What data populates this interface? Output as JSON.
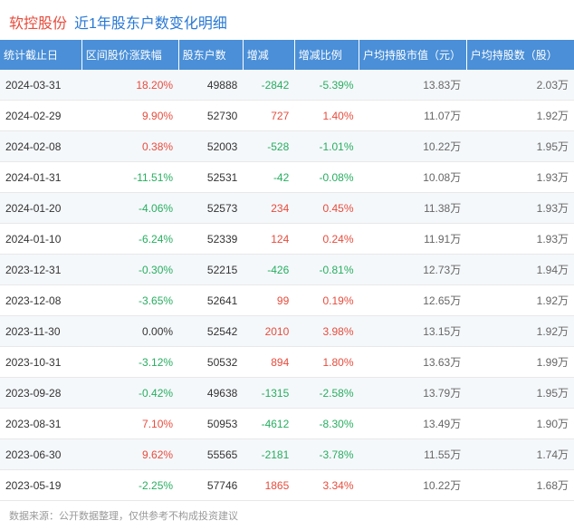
{
  "header": {
    "stock_name": "软控股份",
    "title": "近1年股东户数变化明细"
  },
  "table": {
    "columns": [
      "统计截止日",
      "区间股价涨跌幅",
      "股东户数",
      "增减",
      "增减比例",
      "户均持股市值（元）",
      "户均持股数（股）"
    ],
    "rows": [
      {
        "date": "2024-03-31",
        "change": "18.20%",
        "change_sign": "pos",
        "count": "49888",
        "diff": "-2842",
        "diff_sign": "neg",
        "ratio": "-5.39%",
        "ratio_sign": "neg",
        "mv": "13.83万",
        "shares": "2.03万"
      },
      {
        "date": "2024-02-29",
        "change": "9.90%",
        "change_sign": "pos",
        "count": "52730",
        "diff": "727",
        "diff_sign": "pos",
        "ratio": "1.40%",
        "ratio_sign": "pos",
        "mv": "11.07万",
        "shares": "1.92万"
      },
      {
        "date": "2024-02-08",
        "change": "0.38%",
        "change_sign": "pos",
        "count": "52003",
        "diff": "-528",
        "diff_sign": "neg",
        "ratio": "-1.01%",
        "ratio_sign": "neg",
        "mv": "10.22万",
        "shares": "1.95万"
      },
      {
        "date": "2024-01-31",
        "change": "-11.51%",
        "change_sign": "neg",
        "count": "52531",
        "diff": "-42",
        "diff_sign": "neg",
        "ratio": "-0.08%",
        "ratio_sign": "neg",
        "mv": "10.08万",
        "shares": "1.93万"
      },
      {
        "date": "2024-01-20",
        "change": "-4.06%",
        "change_sign": "neg",
        "count": "52573",
        "diff": "234",
        "diff_sign": "pos",
        "ratio": "0.45%",
        "ratio_sign": "pos",
        "mv": "11.38万",
        "shares": "1.93万"
      },
      {
        "date": "2024-01-10",
        "change": "-6.24%",
        "change_sign": "neg",
        "count": "52339",
        "diff": "124",
        "diff_sign": "pos",
        "ratio": "0.24%",
        "ratio_sign": "pos",
        "mv": "11.91万",
        "shares": "1.93万"
      },
      {
        "date": "2023-12-31",
        "change": "-0.30%",
        "change_sign": "neg",
        "count": "52215",
        "diff": "-426",
        "diff_sign": "neg",
        "ratio": "-0.81%",
        "ratio_sign": "neg",
        "mv": "12.73万",
        "shares": "1.94万"
      },
      {
        "date": "2023-12-08",
        "change": "-3.65%",
        "change_sign": "neg",
        "count": "52641",
        "diff": "99",
        "diff_sign": "pos",
        "ratio": "0.19%",
        "ratio_sign": "pos",
        "mv": "12.65万",
        "shares": "1.92万"
      },
      {
        "date": "2023-11-30",
        "change": "0.00%",
        "change_sign": "zero",
        "count": "52542",
        "diff": "2010",
        "diff_sign": "pos",
        "ratio": "3.98%",
        "ratio_sign": "pos",
        "mv": "13.15万",
        "shares": "1.92万"
      },
      {
        "date": "2023-10-31",
        "change": "-3.12%",
        "change_sign": "neg",
        "count": "50532",
        "diff": "894",
        "diff_sign": "pos",
        "ratio": "1.80%",
        "ratio_sign": "pos",
        "mv": "13.63万",
        "shares": "1.99万"
      },
      {
        "date": "2023-09-28",
        "change": "-0.42%",
        "change_sign": "neg",
        "count": "49638",
        "diff": "-1315",
        "diff_sign": "neg",
        "ratio": "-2.58%",
        "ratio_sign": "neg",
        "mv": "13.79万",
        "shares": "1.95万"
      },
      {
        "date": "2023-08-31",
        "change": "7.10%",
        "change_sign": "pos",
        "count": "50953",
        "diff": "-4612",
        "diff_sign": "neg",
        "ratio": "-8.30%",
        "ratio_sign": "neg",
        "mv": "13.49万",
        "shares": "1.90万"
      },
      {
        "date": "2023-06-30",
        "change": "9.62%",
        "change_sign": "pos",
        "count": "55565",
        "diff": "-2181",
        "diff_sign": "neg",
        "ratio": "-3.78%",
        "ratio_sign": "neg",
        "mv": "11.55万",
        "shares": "1.74万"
      },
      {
        "date": "2023-05-19",
        "change": "-2.25%",
        "change_sign": "neg",
        "count": "57746",
        "diff": "1865",
        "diff_sign": "pos",
        "ratio": "3.34%",
        "ratio_sign": "pos",
        "mv": "10.22万",
        "shares": "1.68万"
      }
    ]
  },
  "footer": {
    "text": "数据来源：公开数据整理，仅供参考不构成投资建议"
  },
  "colors": {
    "header_bg": "#4a8fd8",
    "positive": "#e74c3c",
    "negative": "#27ae60",
    "stock_name": "#e74c3c",
    "title": "#2878d4",
    "row_alt": "#f5f8fb"
  }
}
